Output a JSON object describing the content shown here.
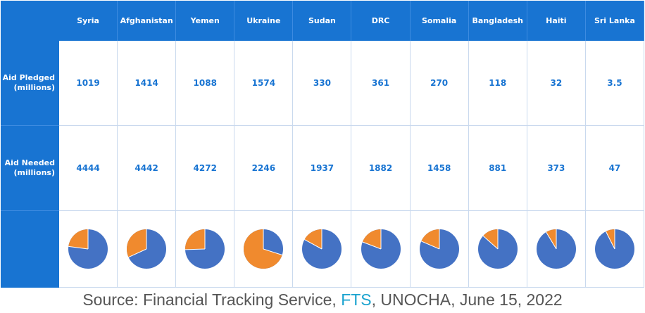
{
  "colors": {
    "header_bg": "#1874d2",
    "value_text": "#1874d2",
    "pie_pledged": "#f08a2e",
    "pie_needed": "#4472c4",
    "link": "#1aa3cf"
  },
  "chart_data": {
    "type": "table",
    "columns": [
      "Syria",
      "Afghanistan",
      "Yemen",
      "Ukraine",
      "Sudan",
      "DRC",
      "Somalia",
      "Bangladesh",
      "Haiti",
      "Sri Lanka"
    ],
    "rows": [
      {
        "label": "Aid Pledged\n(millions)",
        "values": [
          "1019",
          "1414",
          "1088",
          "1574",
          "330",
          "361",
          "270",
          "118",
          "32",
          "3.5"
        ]
      },
      {
        "label": "Aid Needed\n(millions)",
        "values": [
          "4444",
          "4442",
          "4272",
          "2246",
          "1937",
          "1882",
          "1458",
          "881",
          "373",
          "47"
        ]
      }
    ],
    "pies": [
      {
        "pledged": 1019,
        "needed": 4444
      },
      {
        "pledged": 1414,
        "needed": 4442
      },
      {
        "pledged": 1088,
        "needed": 4272
      },
      {
        "pledged": 1574,
        "needed": 2246
      },
      {
        "pledged": 330,
        "needed": 1937
      },
      {
        "pledged": 361,
        "needed": 1882
      },
      {
        "pledged": 270,
        "needed": 1458
      },
      {
        "pledged": 118,
        "needed": 881
      },
      {
        "pledged": 32,
        "needed": 373
      },
      {
        "pledged": 3.5,
        "needed": 47
      }
    ]
  },
  "caption": {
    "before": "Source: Financial Tracking Service, ",
    "link": "FTS",
    "after": ", UNOCHA, June 15, 2022"
  }
}
